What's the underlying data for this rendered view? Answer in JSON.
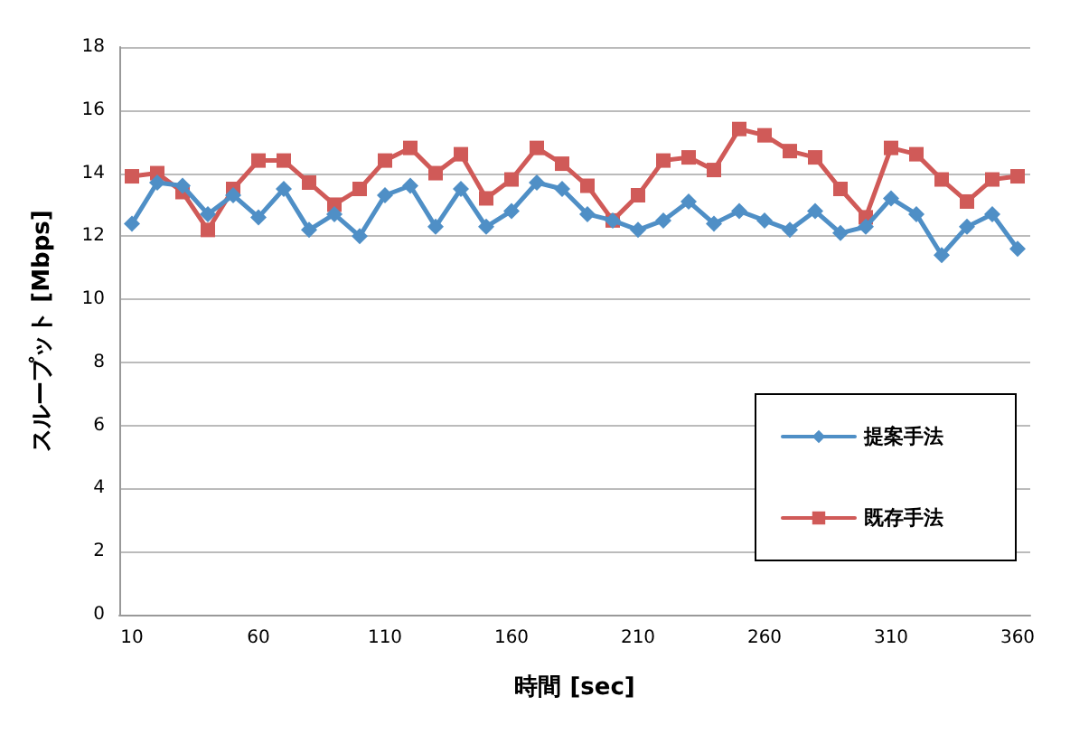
{
  "chart_data": {
    "type": "line",
    "xlabel": "時間 [sec]",
    "ylabel": "スループット [Mbps]",
    "categories": [
      "10",
      null,
      null,
      null,
      null,
      "60",
      null,
      null,
      null,
      null,
      "110",
      null,
      null,
      null,
      null,
      "160",
      null,
      null,
      null,
      null,
      "210",
      null,
      null,
      null,
      null,
      "260",
      null,
      null,
      null,
      null,
      "310",
      null,
      null,
      null,
      null,
      "360"
    ],
    "series": [
      {
        "name": "提案手法",
        "color": "#4f8fc6",
        "marker": "diamond",
        "values": [
          12.4,
          13.7,
          13.6,
          12.7,
          13.3,
          12.6,
          13.5,
          12.2,
          12.7,
          12.0,
          13.3,
          13.6,
          12.3,
          13.5,
          12.3,
          12.8,
          13.7,
          13.5,
          12.7,
          12.5,
          12.2,
          12.5,
          13.1,
          12.4,
          12.8,
          12.5,
          12.2,
          12.8,
          12.1,
          12.3,
          13.2,
          12.7,
          11.4,
          12.3,
          12.7,
          11.6
        ]
      },
      {
        "name": "既存手法",
        "color": "#d05a58",
        "marker": "square",
        "values": [
          13.9,
          14.0,
          13.4,
          12.2,
          13.5,
          14.4,
          14.4,
          13.7,
          13.0,
          13.5,
          14.4,
          14.8,
          14.0,
          14.6,
          13.2,
          13.8,
          14.8,
          14.3,
          13.6,
          12.5,
          13.3,
          14.4,
          14.5,
          14.1,
          15.4,
          15.2,
          14.7,
          14.5,
          13.5,
          12.6,
          14.8,
          14.6,
          13.8,
          13.1,
          13.8,
          13.9
        ]
      }
    ],
    "ylim": [
      0,
      18
    ],
    "yticks": [
      0,
      2,
      4,
      6,
      8,
      10,
      12,
      14,
      16,
      18
    ],
    "grid": "y",
    "legend": "right"
  }
}
